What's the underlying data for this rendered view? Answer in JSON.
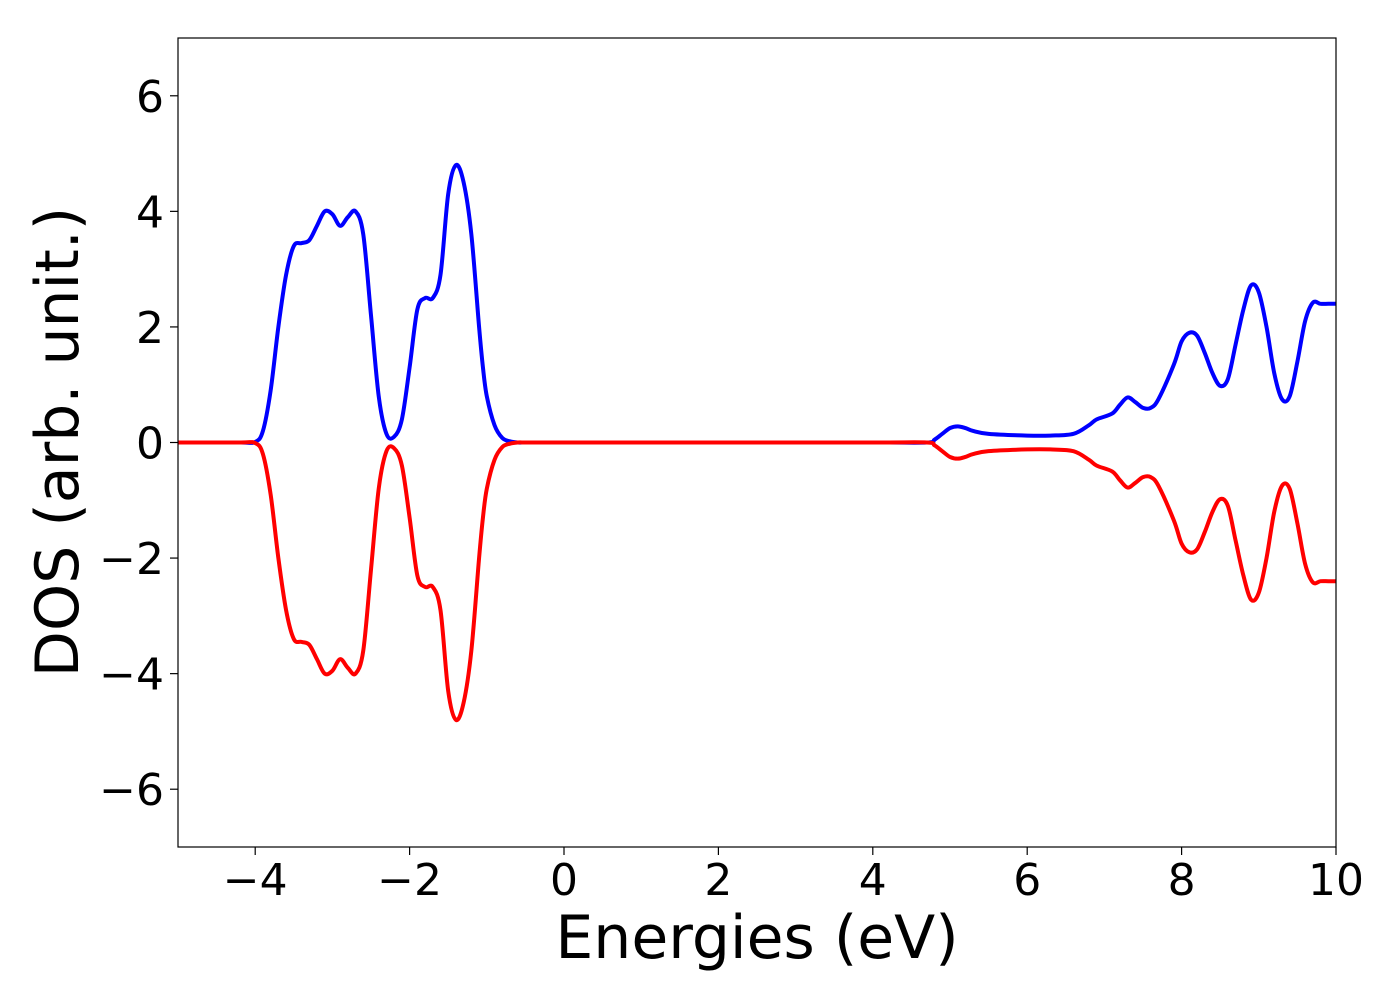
{
  "chart_data": {
    "type": "line",
    "xlabel": "Energies (eV)",
    "ylabel": "DOS (arb. unit.)",
    "xlim": [
      -5,
      10
    ],
    "ylim": [
      -7,
      7
    ],
    "xticks": [
      -4,
      -2,
      0,
      2,
      4,
      6,
      8,
      10
    ],
    "yticks": [
      -6,
      -4,
      -2,
      0,
      2,
      4,
      6
    ],
    "xtick_labels": [
      "−4",
      "−2",
      "0",
      "2",
      "4",
      "6",
      "8",
      "10"
    ],
    "ytick_labels": [
      "−6",
      "−4",
      "−2",
      "0",
      "2",
      "4",
      "6"
    ],
    "grid": false,
    "legend": "none",
    "series": [
      {
        "color": "#0000ff",
        "x": [
          -5.0,
          -4.2,
          -4.0,
          -3.9,
          -3.8,
          -3.7,
          -3.6,
          -3.5,
          -3.4,
          -3.3,
          -3.2,
          -3.1,
          -3.0,
          -2.9,
          -2.8,
          -2.7,
          -2.6,
          -2.5,
          -2.4,
          -2.3,
          -2.2,
          -2.1,
          -2.0,
          -1.9,
          -1.8,
          -1.7,
          -1.6,
          -1.5,
          -1.4,
          -1.3,
          -1.2,
          -1.1,
          -1.05,
          -1.0,
          -0.9,
          -0.8,
          -0.7,
          -0.6,
          -0.5,
          -0.3,
          0.0,
          2.0,
          4.0,
          4.7,
          4.8,
          4.9,
          5.0,
          5.1,
          5.2,
          5.3,
          5.5,
          6.0,
          6.3,
          6.6,
          6.8,
          6.9,
          7.1,
          7.2,
          7.3,
          7.4,
          7.5,
          7.6,
          7.7,
          7.9,
          8.0,
          8.1,
          8.2,
          8.3,
          8.4,
          8.5,
          8.6,
          8.7,
          8.8,
          8.9,
          9.0,
          9.1,
          9.2,
          9.3,
          9.4,
          9.5,
          9.6,
          9.7,
          9.8,
          9.9,
          10.0
        ],
        "y": [
          0.0,
          0.0,
          0.01,
          0.2,
          0.9,
          2.0,
          2.9,
          3.4,
          3.45,
          3.5,
          3.75,
          4.0,
          3.95,
          3.75,
          3.9,
          4.0,
          3.6,
          2.2,
          0.8,
          0.15,
          0.1,
          0.4,
          1.3,
          2.3,
          2.5,
          2.5,
          2.9,
          4.3,
          4.8,
          4.5,
          3.6,
          2.0,
          1.3,
          0.8,
          0.3,
          0.08,
          0.02,
          0.0,
          0.0,
          0.0,
          0.0,
          0.0,
          0.0,
          0.0,
          0.05,
          0.15,
          0.25,
          0.28,
          0.25,
          0.2,
          0.15,
          0.12,
          0.12,
          0.15,
          0.3,
          0.4,
          0.5,
          0.65,
          0.78,
          0.7,
          0.6,
          0.6,
          0.75,
          1.35,
          1.75,
          1.9,
          1.85,
          1.55,
          1.2,
          0.98,
          1.1,
          1.7,
          2.3,
          2.72,
          2.6,
          2.0,
          1.2,
          0.75,
          0.8,
          1.4,
          2.1,
          2.42,
          2.4,
          2.4,
          2.4
        ]
      },
      {
        "color": "#ff0000",
        "x": [
          -5.0,
          -4.2,
          -4.0,
          -3.9,
          -3.8,
          -3.7,
          -3.6,
          -3.5,
          -3.4,
          -3.3,
          -3.2,
          -3.1,
          -3.0,
          -2.9,
          -2.8,
          -2.7,
          -2.6,
          -2.5,
          -2.4,
          -2.3,
          -2.2,
          -2.1,
          -2.0,
          -1.9,
          -1.8,
          -1.7,
          -1.6,
          -1.5,
          -1.4,
          -1.3,
          -1.2,
          -1.1,
          -1.05,
          -1.0,
          -0.9,
          -0.8,
          -0.7,
          -0.6,
          -0.5,
          -0.3,
          0.0,
          2.0,
          4.0,
          4.7,
          4.8,
          4.9,
          5.0,
          5.1,
          5.2,
          5.3,
          5.5,
          6.0,
          6.3,
          6.6,
          6.8,
          6.9,
          7.1,
          7.2,
          7.3,
          7.4,
          7.5,
          7.6,
          7.7,
          7.9,
          8.0,
          8.1,
          8.2,
          8.3,
          8.4,
          8.5,
          8.6,
          8.7,
          8.8,
          8.9,
          9.0,
          9.1,
          9.2,
          9.3,
          9.4,
          9.5,
          9.6,
          9.7,
          9.8,
          9.9,
          10.0
        ],
        "y": [
          0.0,
          0.0,
          -0.01,
          -0.2,
          -0.9,
          -2.0,
          -2.9,
          -3.4,
          -3.45,
          -3.5,
          -3.75,
          -4.0,
          -3.95,
          -3.75,
          -3.9,
          -4.0,
          -3.6,
          -2.2,
          -0.8,
          -0.15,
          -0.1,
          -0.4,
          -1.3,
          -2.3,
          -2.5,
          -2.5,
          -2.9,
          -4.3,
          -4.8,
          -4.5,
          -3.6,
          -2.0,
          -1.3,
          -0.8,
          -0.3,
          -0.08,
          -0.02,
          0.0,
          0.0,
          0.0,
          0.0,
          0.0,
          0.0,
          0.0,
          -0.05,
          -0.15,
          -0.25,
          -0.28,
          -0.25,
          -0.2,
          -0.15,
          -0.12,
          -0.12,
          -0.15,
          -0.3,
          -0.4,
          -0.5,
          -0.65,
          -0.78,
          -0.7,
          -0.6,
          -0.6,
          -0.75,
          -1.35,
          -1.75,
          -1.9,
          -1.85,
          -1.55,
          -1.2,
          -0.98,
          -1.1,
          -1.7,
          -2.3,
          -2.72,
          -2.6,
          -2.0,
          -1.2,
          -0.75,
          -0.8,
          -1.4,
          -2.1,
          -2.42,
          -2.4,
          -2.4,
          -2.4
        ]
      }
    ]
  }
}
